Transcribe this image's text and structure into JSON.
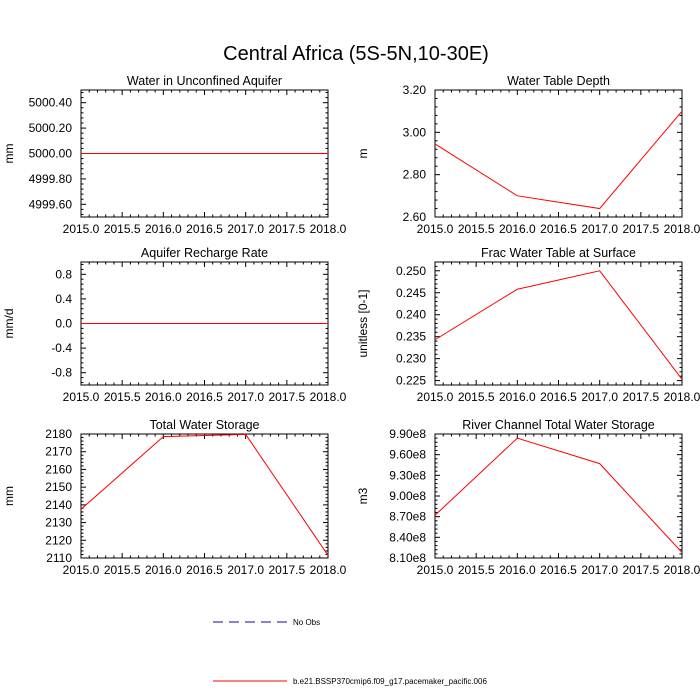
{
  "figure": {
    "title": "Central Africa (5S-5N,10-30E)"
  },
  "legend": {
    "items": [
      {
        "label": "No Obs",
        "color": "#1a0a8c",
        "dash": true
      },
      {
        "label": "b.e21.BSSP370cmip6.f09_g17.pacemaker_pacific.006",
        "color": "#ff0000",
        "dash": false
      }
    ]
  },
  "chart_data": [
    {
      "type": "line",
      "title": "Water in Unconfined Aquifer",
      "ylabel": "mm",
      "x": [
        2015,
        2016,
        2017,
        2018
      ],
      "series": [
        {
          "name": "b.e21.BSSP370cmip6.f09_g17.pacemaker_pacific.006",
          "color": "#ff0000",
          "values": [
            5000.0,
            5000.0,
            5000.0,
            5000.0
          ]
        }
      ],
      "xlim": [
        2015,
        2018
      ],
      "ylim": [
        4999.5,
        5000.5
      ],
      "xticks": [
        2015,
        2015.5,
        2016,
        2016.5,
        2017,
        2017.5,
        2018
      ],
      "xtick_labels": [
        "2015.0",
        "2015.5",
        "2016.0",
        "2016.5",
        "2017.0",
        "2017.5",
        "2018.0"
      ],
      "yticks": [
        4999.6,
        4999.8,
        5000.0,
        5000.2,
        5000.4
      ],
      "ytick_labels": [
        "4999.60",
        "4999.80",
        "5000.00",
        "5000.20",
        "5000.40"
      ],
      "minor_y": 4
    },
    {
      "type": "line",
      "title": "Water Table Depth",
      "ylabel": "m",
      "x": [
        2015,
        2016,
        2017,
        2018
      ],
      "series": [
        {
          "name": "b.e21.BSSP370cmip6.f09_g17.pacemaker_pacific.006",
          "color": "#ff0000",
          "values": [
            2.945,
            2.7,
            2.64,
            3.1
          ]
        }
      ],
      "xlim": [
        2015,
        2018
      ],
      "ylim": [
        2.6,
        3.2
      ],
      "xticks": [
        2015,
        2015.5,
        2016,
        2016.5,
        2017,
        2017.5,
        2018
      ],
      "xtick_labels": [
        "2015.0",
        "2015.5",
        "2016.0",
        "2016.5",
        "2017.0",
        "2017.5",
        "2018.0"
      ],
      "yticks": [
        2.6,
        2.8,
        3.0,
        3.2
      ],
      "ytick_labels": [
        "2.60",
        "2.80",
        "3.00",
        "3.20"
      ],
      "minor_y": 4
    },
    {
      "type": "line",
      "title": "Aquifer Recharge Rate",
      "ylabel": "mm/d",
      "x": [
        2015,
        2016,
        2017,
        2018
      ],
      "series": [
        {
          "name": "b.e21.BSSP370cmip6.f09_g17.pacemaker_pacific.006",
          "color": "#ff0000",
          "values": [
            0.0,
            0.0,
            0.0,
            0.0
          ]
        }
      ],
      "xlim": [
        2015,
        2018
      ],
      "ylim": [
        -1.0,
        1.0
      ],
      "xticks": [
        2015,
        2015.5,
        2016,
        2016.5,
        2017,
        2017.5,
        2018
      ],
      "xtick_labels": [
        "2015.0",
        "2015.5",
        "2016.0",
        "2016.5",
        "2017.0",
        "2017.5",
        "2018.0"
      ],
      "yticks": [
        -0.8,
        -0.4,
        0.0,
        0.4,
        0.8
      ],
      "ytick_labels": [
        "-0.8",
        "-0.4",
        "0.0",
        "0.4",
        "0.8"
      ],
      "minor_y": 4
    },
    {
      "type": "line",
      "title": "Frac Water Table at Surface",
      "ylabel": "unitless [0-1]",
      "x": [
        2015,
        2016,
        2017,
        2018
      ],
      "series": [
        {
          "name": "b.e21.BSSP370cmip6.f09_g17.pacemaker_pacific.006",
          "color": "#ff0000",
          "values": [
            0.2343,
            0.2458,
            0.25,
            0.2253
          ]
        }
      ],
      "xlim": [
        2015,
        2018
      ],
      "ylim": [
        0.224,
        0.252
      ],
      "xticks": [
        2015,
        2015.5,
        2016,
        2016.5,
        2017,
        2017.5,
        2018
      ],
      "xtick_labels": [
        "2015.0",
        "2015.5",
        "2016.0",
        "2016.5",
        "2017.0",
        "2017.5",
        "2018.0"
      ],
      "yticks": [
        0.225,
        0.23,
        0.235,
        0.24,
        0.245,
        0.25
      ],
      "ytick_labels": [
        "0.225",
        "0.230",
        "0.235",
        "0.240",
        "0.245",
        "0.250"
      ],
      "minor_y": 4
    },
    {
      "type": "line",
      "title": "Total Water Storage",
      "ylabel": "mm",
      "x": [
        2015,
        2016,
        2017,
        2018
      ],
      "series": [
        {
          "name": "b.e21.BSSP370cmip6.f09_g17.pacemaker_pacific.006",
          "color": "#ff0000",
          "values": [
            2137.5,
            2178.5,
            2179.8,
            2111.5
          ]
        }
      ],
      "xlim": [
        2015,
        2018
      ],
      "ylim": [
        2110,
        2180
      ],
      "xticks": [
        2015,
        2015.5,
        2016,
        2016.5,
        2017,
        2017.5,
        2018
      ],
      "xtick_labels": [
        "2015.0",
        "2015.5",
        "2016.0",
        "2016.5",
        "2017.0",
        "2017.5",
        "2018.0"
      ],
      "yticks": [
        2110,
        2120,
        2130,
        2140,
        2150,
        2160,
        2170,
        2180
      ],
      "ytick_labels": [
        "2110",
        "2120",
        "2130",
        "2140",
        "2150",
        "2160",
        "2170",
        "2180"
      ],
      "minor_y": 4
    },
    {
      "type": "line",
      "title": "River Channel Total Water Storage",
      "ylabel": "m3",
      "x": [
        2015,
        2016,
        2017,
        2018
      ],
      "series": [
        {
          "name": "b.e21.BSSP370cmip6.f09_g17.pacemaker_pacific.006",
          "color": "#ff0000",
          "values": [
            872000000,
            984000000,
            947000000,
            818000000
          ]
        }
      ],
      "xlim": [
        2015,
        2018
      ],
      "ylim": [
        810000000,
        990000000
      ],
      "xticks": [
        2015,
        2015.5,
        2016,
        2016.5,
        2017,
        2017.5,
        2018
      ],
      "xtick_labels": [
        "2015.0",
        "2015.5",
        "2016.0",
        "2016.5",
        "2017.0",
        "2017.5",
        "2018.0"
      ],
      "yticks": [
        810000000,
        840000000,
        870000000,
        900000000,
        930000000,
        960000000,
        990000000
      ],
      "ytick_labels": [
        "8.10e8",
        "8.40e8",
        "8.70e8",
        "9.00e8",
        "9.30e8",
        "9.60e8",
        "9.90e8"
      ],
      "minor_y": 4
    }
  ]
}
